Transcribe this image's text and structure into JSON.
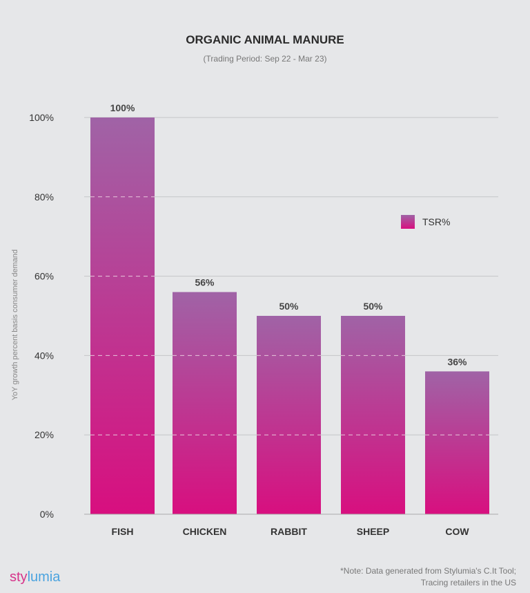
{
  "chart_data": {
    "type": "bar",
    "title": "ORGANIC ANIMAL MANURE",
    "subtitle": "(Trading Period: Sep 22 - Mar 23)",
    "ylabel": "YoY growth percent basis consumer demand",
    "xlabel": "",
    "categories": [
      "FISH",
      "CHICKEN",
      "RABBIT",
      "SHEEP",
      "COW"
    ],
    "series": [
      {
        "name": "TSR%",
        "values": [
          100,
          56,
          50,
          50,
          36
        ]
      }
    ],
    "data_labels": [
      "100%",
      "56%",
      "50%",
      "50%",
      "36%"
    ],
    "ylim": [
      0,
      100
    ],
    "yticks": [
      0,
      20,
      40,
      60,
      80,
      100
    ],
    "ytick_labels": [
      "0%",
      "20%",
      "40%",
      "60%",
      "80%",
      "100%"
    ],
    "grid": true,
    "legend_position": "right",
    "colors": {
      "bar_top": "#a063a6",
      "bar_bottom": "#d80f7f",
      "grid": "#c4c5c8",
      "background": "#e6e7e9"
    }
  },
  "footer": {
    "logo_part1": "sty",
    "logo_part2": "lumia",
    "note_line1": "*Note: Data generated from Stylumia's C.It Tool;",
    "note_line2": "Tracing retailers in the US"
  }
}
